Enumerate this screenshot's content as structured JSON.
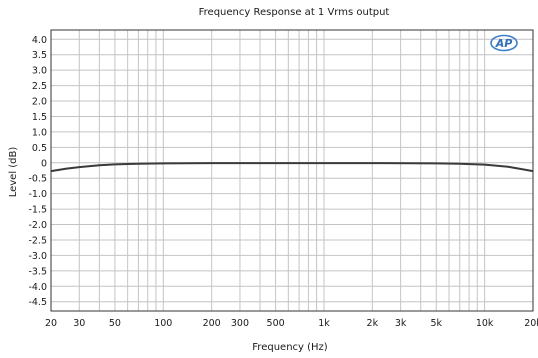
{
  "chart_data": {
    "type": "line",
    "title": "Frequency Response at 1 Vrms output",
    "xlabel": "Frequency (Hz)",
    "ylabel": "Level (dB)",
    "xscale": "log",
    "xlim": [
      20,
      20000
    ],
    "ylim": [
      -4.8,
      4.3
    ],
    "grid": true,
    "legend": "none",
    "logo": "AP",
    "xticks": [
      {
        "value": 20,
        "label": "20"
      },
      {
        "value": 30,
        "label": "30"
      },
      {
        "value": 50,
        "label": "50"
      },
      {
        "value": 100,
        "label": "100"
      },
      {
        "value": 200,
        "label": "200"
      },
      {
        "value": 300,
        "label": "300"
      },
      {
        "value": 500,
        "label": "500"
      },
      {
        "value": 1000,
        "label": "1k"
      },
      {
        "value": 2000,
        "label": "2k"
      },
      {
        "value": 3000,
        "label": "3k"
      },
      {
        "value": 5000,
        "label": "5k"
      },
      {
        "value": 10000,
        "label": "10k"
      },
      {
        "value": 20000,
        "label": "20k"
      }
    ],
    "yticks": [
      {
        "value": 4.0,
        "label": "4.0"
      },
      {
        "value": 3.5,
        "label": "3.5"
      },
      {
        "value": 3.0,
        "label": "3.0"
      },
      {
        "value": 2.5,
        "label": "2.5"
      },
      {
        "value": 2.0,
        "label": "2.0"
      },
      {
        "value": 1.5,
        "label": "1.5"
      },
      {
        "value": 1.0,
        "label": "1.0"
      },
      {
        "value": 0.5,
        "label": "0.5"
      },
      {
        "value": 0,
        "label": "0"
      },
      {
        "value": -0.5,
        "label": "-0.5"
      },
      {
        "value": -1.0,
        "label": "-1.0"
      },
      {
        "value": -1.5,
        "label": "-1.5"
      },
      {
        "value": -2.0,
        "label": "-2.0"
      },
      {
        "value": -2.5,
        "label": "-2.5"
      },
      {
        "value": -3.0,
        "label": "-3.0"
      },
      {
        "value": -3.5,
        "label": "-3.5"
      },
      {
        "value": -4.0,
        "label": "-4.0"
      },
      {
        "value": -4.5,
        "label": "-4.5"
      }
    ],
    "series": [
      {
        "color": "#3a3a3a",
        "x": [
          20,
          25,
          30,
          40,
          50,
          70,
          100,
          200,
          500,
          1000,
          2000,
          5000,
          7000,
          10000,
          14000,
          20000
        ],
        "y": [
          -0.27,
          -0.19,
          -0.14,
          -0.08,
          -0.05,
          -0.03,
          -0.02,
          -0.01,
          -0.01,
          -0.01,
          -0.01,
          -0.02,
          -0.03,
          -0.06,
          -0.13,
          -0.27
        ]
      }
    ]
  }
}
